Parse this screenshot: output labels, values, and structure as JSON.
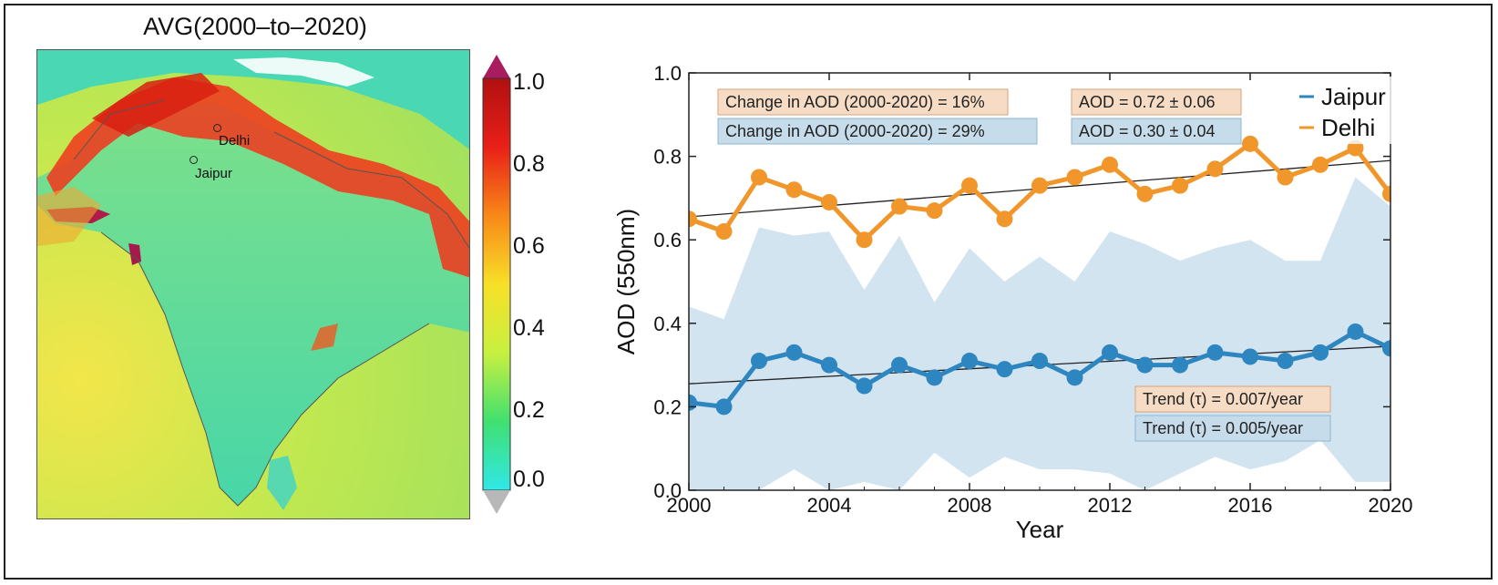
{
  "map": {
    "title": "AVG(2000–to–2020)",
    "cities": [
      {
        "name": "Delhi"
      },
      {
        "name": "Jaipur"
      }
    ],
    "colorbar": {
      "ticks": [
        "1.0",
        "0.8",
        "0.6",
        "0.4",
        "0.2",
        "0.0"
      ],
      "colors": [
        "#30e8e8",
        "#40e070",
        "#c8f040",
        "#f8e028",
        "#f88818",
        "#e82018",
        "#b01010"
      ],
      "over_color": "#a81c60",
      "under_color": "#b8b8b8"
    }
  },
  "chart_data": {
    "type": "line",
    "xlabel": "Year",
    "ylabel": "AOD (550nm)",
    "xlim": [
      2000,
      2020
    ],
    "ylim": [
      0.0,
      1.0
    ],
    "x_ticks": [
      "2000",
      "2004",
      "2008",
      "2012",
      "2016",
      "2020"
    ],
    "y_ticks": [
      "0.0",
      "0.2",
      "0.4",
      "0.6",
      "0.8",
      "1.0"
    ],
    "x": [
      2000,
      2001,
      2002,
      2003,
      2004,
      2005,
      2006,
      2007,
      2008,
      2009,
      2010,
      2011,
      2012,
      2013,
      2014,
      2015,
      2016,
      2017,
      2018,
      2019,
      2020
    ],
    "series": [
      {
        "name": "Jaipur",
        "color": "#2e86c1",
        "values": [
          0.21,
          0.2,
          0.31,
          0.33,
          0.3,
          0.25,
          0.3,
          0.27,
          0.31,
          0.29,
          0.31,
          0.27,
          0.33,
          0.3,
          0.3,
          0.33,
          0.32,
          0.31,
          0.33,
          0.38,
          0.34
        ]
      },
      {
        "name": "Delhi",
        "color": "#f0962a",
        "values": [
          0.65,
          0.62,
          0.75,
          0.72,
          0.69,
          0.6,
          0.68,
          0.67,
          0.73,
          0.65,
          0.73,
          0.75,
          0.78,
          0.71,
          0.73,
          0.77,
          0.83,
          0.75,
          0.78,
          0.82,
          0.71
        ]
      }
    ],
    "shaded_band": {
      "color": "#d2e4f0",
      "upper": [
        0.44,
        0.41,
        0.63,
        0.61,
        0.62,
        0.48,
        0.61,
        0.45,
        0.58,
        0.5,
        0.56,
        0.5,
        0.62,
        0.59,
        0.55,
        0.58,
        0.6,
        0.55,
        0.55,
        0.75,
        0.68
      ],
      "lower": [
        0.0,
        0.0,
        0.0,
        0.05,
        0.0,
        0.02,
        0.0,
        0.09,
        0.03,
        0.08,
        0.05,
        0.05,
        0.04,
        0.0,
        0.04,
        0.08,
        0.05,
        0.07,
        0.12,
        0.02,
        0.02
      ]
    },
    "trend_lines": [
      {
        "start": 0.655,
        "end": 0.79
      },
      {
        "start": 0.255,
        "end": 0.345
      }
    ],
    "annotations": [
      {
        "text": "Change in AOD (2000-2020) = 16%",
        "bg": "#f6dcc4",
        "border": "#d9a27c"
      },
      {
        "text": "Change in AOD (2000-2020) = 29%",
        "bg": "#c6dcea",
        "border": "#8fb6d2"
      },
      {
        "text": "AOD = 0.72 ± 0.06",
        "bg": "#f6dcc4",
        "border": "#d9a27c"
      },
      {
        "text": "AOD = 0.30 ± 0.04",
        "bg": "#c6dcea",
        "border": "#8fb6d2"
      },
      {
        "text": "Trend (τ) = 0.007/year",
        "bg": "#f6dcc4",
        "border": "#d9a27c"
      },
      {
        "text": "Trend (τ) = 0.005/year",
        "bg": "#c6dcea",
        "border": "#8fb6d2"
      }
    ],
    "legend": {
      "position": "top-right",
      "entries": [
        "Jaipur",
        "Delhi"
      ]
    }
  }
}
